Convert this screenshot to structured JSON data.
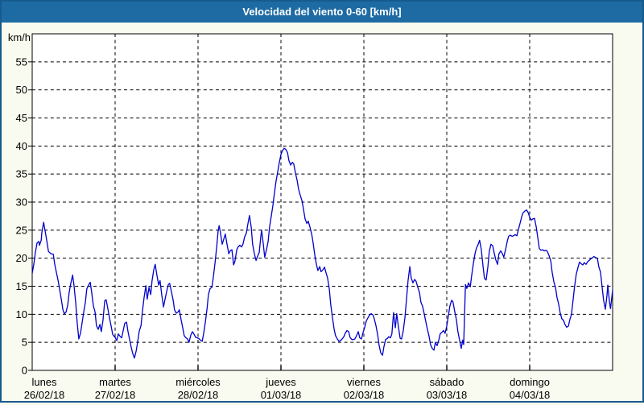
{
  "title_bar": {
    "text": "Velocidad del viento 0-60 [km/h]",
    "bg_color": "#1e6ba4",
    "text_color": "#ffffff",
    "frame_border_color": "#175a8d",
    "page_bg_color": "#fafbf0"
  },
  "chart_data": {
    "type": "line",
    "title": "Velocidad del viento 0-60 [km/h]",
    "ylabel": "km/h",
    "xlabel": "",
    "ylim": [
      0,
      60
    ],
    "x_hours_total": 168,
    "grid": "dashed",
    "legend": "none",
    "plot_bg_color": "#ffffff",
    "line_color": "#0000cc",
    "grid_color": "#000000",
    "y_ticks": [
      0,
      5,
      10,
      15,
      20,
      25,
      30,
      35,
      40,
      45,
      50,
      55
    ],
    "x_labels": [
      {
        "day": "lunes",
        "date": "26/02/18"
      },
      {
        "day": "martes",
        "date": "27/02/18"
      },
      {
        "day": "miércoles",
        "date": "28/02/18"
      },
      {
        "day": "jueves",
        "date": "01/03/18"
      },
      {
        "day": "viernes",
        "date": "02/03/18"
      },
      {
        "day": "sábado",
        "date": "03/03/18"
      },
      {
        "day": "domingo",
        "date": "04/03/18"
      }
    ],
    "points": [
      [
        0,
        17.3
      ],
      [
        0.5,
        19
      ],
      [
        0.9,
        21
      ],
      [
        1.4,
        22.7
      ],
      [
        1.9,
        23
      ],
      [
        2.1,
        22.3
      ],
      [
        2.6,
        23.2
      ],
      [
        2.8,
        24.6
      ],
      [
        3.3,
        26.4
      ],
      [
        3.7,
        25
      ],
      [
        4.2,
        23.2
      ],
      [
        4.7,
        21.2
      ],
      [
        5.4,
        20.8
      ],
      [
        6.1,
        20.7
      ],
      [
        6.5,
        19
      ],
      [
        7,
        17.5
      ],
      [
        7.5,
        16
      ],
      [
        7.9,
        14.6
      ],
      [
        8.4,
        12.7
      ],
      [
        8.9,
        10.8
      ],
      [
        9.3,
        10.1
      ],
      [
        9.8,
        10.4
      ],
      [
        10.3,
        11.7
      ],
      [
        10.7,
        13.9
      ],
      [
        11.2,
        15.6
      ],
      [
        11.7,
        17
      ],
      [
        12.1,
        15.2
      ],
      [
        12.6,
        12
      ],
      [
        13,
        8.6
      ],
      [
        13.5,
        5.6
      ],
      [
        14,
        6.7
      ],
      [
        14.4,
        8.3
      ],
      [
        14.9,
        10.3
      ],
      [
        15.4,
        12.2
      ],
      [
        15.8,
        14.5
      ],
      [
        16.3,
        15.2
      ],
      [
        16.8,
        15.7
      ],
      [
        17.2,
        14
      ],
      [
        17.7,
        11.5
      ],
      [
        18.2,
        10.4
      ],
      [
        18.6,
        8
      ],
      [
        19.1,
        7.3
      ],
      [
        19.6,
        8.2
      ],
      [
        20,
        6.9
      ],
      [
        20.5,
        9
      ],
      [
        21,
        12.4
      ],
      [
        21.4,
        12.6
      ],
      [
        21.9,
        11
      ],
      [
        22.4,
        9.3
      ],
      [
        22.8,
        8
      ],
      [
        23.3,
        6.4
      ],
      [
        23.8,
        6
      ],
      [
        24,
        5.9
      ],
      [
        24.5,
        5.3
      ],
      [
        24.9,
        6.5
      ],
      [
        25.4,
        6.1
      ],
      [
        25.9,
        5.8
      ],
      [
        26.3,
        7
      ],
      [
        26.8,
        8.4
      ],
      [
        27.3,
        8.6
      ],
      [
        27.7,
        7
      ],
      [
        28.2,
        5.5
      ],
      [
        28.7,
        4
      ],
      [
        29.1,
        3
      ],
      [
        29.6,
        2.2
      ],
      [
        30.1,
        3.5
      ],
      [
        30.5,
        5
      ],
      [
        31,
        7
      ],
      [
        31.5,
        8
      ],
      [
        31.9,
        10.5
      ],
      [
        32.4,
        13
      ],
      [
        32.9,
        15.1
      ],
      [
        33.3,
        12.7
      ],
      [
        33.8,
        14.8
      ],
      [
        34.3,
        13.5
      ],
      [
        34.7,
        16
      ],
      [
        35.2,
        18
      ],
      [
        35.6,
        18.9
      ],
      [
        36.1,
        17
      ],
      [
        36.6,
        15.2
      ],
      [
        37,
        16
      ],
      [
        37.5,
        13.5
      ],
      [
        38,
        11.3
      ],
      [
        38.4,
        12.5
      ],
      [
        38.9,
        14
      ],
      [
        39.4,
        15.3
      ],
      [
        39.8,
        15.5
      ],
      [
        40.3,
        14
      ],
      [
        40.8,
        12.5
      ],
      [
        41.2,
        10.8
      ],
      [
        41.7,
        10.2
      ],
      [
        42.2,
        10.4
      ],
      [
        42.6,
        10.8
      ],
      [
        43.1,
        9
      ],
      [
        43.6,
        7.5
      ],
      [
        44,
        6.2
      ],
      [
        44.5,
        5.8
      ],
      [
        45,
        5.6
      ],
      [
        45.4,
        5
      ],
      [
        45.9,
        6.3
      ],
      [
        46.4,
        6.9
      ],
      [
        46.8,
        6.5
      ],
      [
        47.3,
        5.9
      ],
      [
        47.8,
        5.8
      ],
      [
        48.2,
        5.7
      ],
      [
        48.7,
        5.4
      ],
      [
        49.2,
        5.2
      ],
      [
        49.6,
        6.5
      ],
      [
        50.1,
        8.5
      ],
      [
        50.6,
        11
      ],
      [
        51,
        13.5
      ],
      [
        51.5,
        14.6
      ],
      [
        52,
        14.8
      ],
      [
        52.4,
        16.5
      ],
      [
        52.9,
        19
      ],
      [
        53.4,
        22
      ],
      [
        53.8,
        24.8
      ],
      [
        54.1,
        25.8
      ],
      [
        54.5,
        24.5
      ],
      [
        55,
        22.5
      ],
      [
        55.5,
        23.5
      ],
      [
        55.9,
        24.3
      ],
      [
        56.4,
        22.5
      ],
      [
        56.9,
        20.8
      ],
      [
        57.3,
        21.3
      ],
      [
        57.8,
        21.5
      ],
      [
        58.3,
        18.8
      ],
      [
        58.7,
        19.5
      ],
      [
        59.2,
        21.5
      ],
      [
        59.6,
        22
      ],
      [
        60.1,
        22.3
      ],
      [
        60.6,
        22
      ],
      [
        61,
        22.5
      ],
      [
        61.5,
        23.8
      ],
      [
        62,
        24.5
      ],
      [
        62.4,
        26
      ],
      [
        62.9,
        27.6
      ],
      [
        63.4,
        25.5
      ],
      [
        63.8,
        22.5
      ],
      [
        64.3,
        20.8
      ],
      [
        64.8,
        19.6
      ],
      [
        65.2,
        20.3
      ],
      [
        65.7,
        21
      ],
      [
        66.2,
        24
      ],
      [
        66.4,
        25
      ],
      [
        66.9,
        22.5
      ],
      [
        67.3,
        20.2
      ],
      [
        67.8,
        21.5
      ],
      [
        68.3,
        23
      ],
      [
        68.7,
        25.5
      ],
      [
        69.2,
        27.5
      ],
      [
        69.7,
        29.5
      ],
      [
        70.1,
        31.5
      ],
      [
        70.6,
        33.8
      ],
      [
        71.1,
        35.5
      ],
      [
        71.5,
        37
      ],
      [
        72,
        38.5
      ],
      [
        72.5,
        39.2
      ],
      [
        72.9,
        39.6
      ],
      [
        73.4,
        39.4
      ],
      [
        73.9,
        38.8
      ],
      [
        74.3,
        37.4
      ],
      [
        74.8,
        36.6
      ],
      [
        75.3,
        37.1
      ],
      [
        75.7,
        36.8
      ],
      [
        76.2,
        35.2
      ],
      [
        76.7,
        33.8
      ],
      [
        77.1,
        32.3
      ],
      [
        77.6,
        31.2
      ],
      [
        78.1,
        30.2
      ],
      [
        78.5,
        28.8
      ],
      [
        79,
        27
      ],
      [
        79.5,
        26.2
      ],
      [
        79.9,
        26.6
      ],
      [
        80.4,
        25.5
      ],
      [
        80.9,
        24.3
      ],
      [
        81.3,
        22.8
      ],
      [
        81.8,
        20.5
      ],
      [
        82.3,
        18.8
      ],
      [
        82.7,
        17.8
      ],
      [
        83.2,
        18.5
      ],
      [
        83.6,
        17.6
      ],
      [
        84.1,
        17.9
      ],
      [
        84.6,
        18.4
      ],
      [
        85,
        17.5
      ],
      [
        85.5,
        16.5
      ],
      [
        86,
        14.5
      ],
      [
        86.4,
        11.8
      ],
      [
        86.9,
        9.5
      ],
      [
        87.4,
        7.3
      ],
      [
        87.8,
        6.2
      ],
      [
        88.3,
        5.6
      ],
      [
        88.8,
        5.2
      ],
      [
        89.2,
        5.3
      ],
      [
        89.7,
        5.6
      ],
      [
        90.2,
        6
      ],
      [
        90.6,
        6.6
      ],
      [
        91.1,
        7.1
      ],
      [
        91.6,
        6.9
      ],
      [
        92,
        5.9
      ],
      [
        92.5,
        5.5
      ],
      [
        93,
        5.5
      ],
      [
        93.4,
        5.6
      ],
      [
        93.9,
        6.2
      ],
      [
        94.4,
        6.9
      ],
      [
        94.8,
        5.8
      ],
      [
        95.3,
        5.6
      ],
      [
        95.8,
        6.8
      ],
      [
        96.2,
        7.6
      ],
      [
        96.7,
        8.8
      ],
      [
        97.2,
        9.4
      ],
      [
        97.6,
        9.8
      ],
      [
        98.1,
        10.1
      ],
      [
        98.6,
        9.9
      ],
      [
        99,
        9.2
      ],
      [
        99.5,
        8
      ],
      [
        100,
        6.3
      ],
      [
        100.4,
        4.5
      ],
      [
        100.9,
        3.1
      ],
      [
        101.4,
        2.7
      ],
      [
        101.8,
        4.2
      ],
      [
        102.3,
        5.5
      ],
      [
        102.8,
        5.7
      ],
      [
        103.2,
        6
      ],
      [
        103.7,
        5.8
      ],
      [
        104.1,
        6.5
      ],
      [
        104.6,
        10.3
      ],
      [
        105.1,
        7.6
      ],
      [
        105.5,
        10.1
      ],
      [
        106,
        7.8
      ],
      [
        106.5,
        5.7
      ],
      [
        106.9,
        5.6
      ],
      [
        107.4,
        7
      ],
      [
        107.9,
        9.5
      ],
      [
        108.3,
        12.4
      ],
      [
        108.8,
        16
      ],
      [
        109.3,
        18.5
      ],
      [
        109.7,
        16.5
      ],
      [
        110.2,
        15.6
      ],
      [
        110.7,
        16.2
      ],
      [
        111.1,
        15.9
      ],
      [
        111.6,
        14.8
      ],
      [
        112.1,
        13.9
      ],
      [
        112.5,
        12.2
      ],
      [
        113,
        11.4
      ],
      [
        113.5,
        10
      ],
      [
        113.9,
        8.8
      ],
      [
        114.4,
        7.3
      ],
      [
        114.9,
        6
      ],
      [
        115.3,
        4.6
      ],
      [
        115.8,
        3.9
      ],
      [
        116.3,
        3.6
      ],
      [
        116.7,
        5
      ],
      [
        117.2,
        4.4
      ],
      [
        117.7,
        5.4
      ],
      [
        118.1,
        6.5
      ],
      [
        118.6,
        6.8
      ],
      [
        119.1,
        7.1
      ],
      [
        119.5,
        6.6
      ],
      [
        120,
        7.9
      ],
      [
        120.4,
        9.5
      ],
      [
        120.9,
        11.5
      ],
      [
        121.4,
        12.5
      ],
      [
        121.8,
        12.2
      ],
      [
        122.3,
        10.5
      ],
      [
        122.8,
        9
      ],
      [
        123.2,
        7
      ],
      [
        123.7,
        5.4
      ],
      [
        124.2,
        3.9
      ],
      [
        124.6,
        5.4
      ],
      [
        124.9,
        4.6
      ],
      [
        125.1,
        9
      ],
      [
        125.4,
        15.3
      ],
      [
        125.8,
        14.6
      ],
      [
        126.3,
        15.6
      ],
      [
        126.8,
        14.9
      ],
      [
        127.2,
        16.9
      ],
      [
        127.7,
        19
      ],
      [
        128.2,
        20.9
      ],
      [
        128.6,
        21.8
      ],
      [
        129.1,
        22.5
      ],
      [
        129.5,
        23.2
      ],
      [
        130,
        21.5
      ],
      [
        130.5,
        18.5
      ],
      [
        130.9,
        16.4
      ],
      [
        131.4,
        16.1
      ],
      [
        131.9,
        18.5
      ],
      [
        132.3,
        21.2
      ],
      [
        132.8,
        22.5
      ],
      [
        133.3,
        22.2
      ],
      [
        133.7,
        21
      ],
      [
        134.2,
        19.7
      ],
      [
        134.7,
        18.9
      ],
      [
        135.1,
        20.8
      ],
      [
        135.6,
        21.3
      ],
      [
        136.1,
        20.8
      ],
      [
        136.5,
        20.2
      ],
      [
        137,
        21.5
      ],
      [
        137.5,
        23
      ],
      [
        137.9,
        23.9
      ],
      [
        138.4,
        24.1
      ],
      [
        138.9,
        23.9
      ],
      [
        139.3,
        24
      ],
      [
        139.8,
        24.2
      ],
      [
        140.3,
        24
      ],
      [
        140.7,
        25
      ],
      [
        141.2,
        26.2
      ],
      [
        141.7,
        27.4
      ],
      [
        142.1,
        28.1
      ],
      [
        142.6,
        28.4
      ],
      [
        143.1,
        28.6
      ],
      [
        143.5,
        28.2
      ],
      [
        144,
        27.3
      ],
      [
        144.5,
        26.8
      ],
      [
        144.9,
        27
      ],
      [
        145.4,
        27.1
      ],
      [
        145.9,
        25.5
      ],
      [
        146.3,
        23.8
      ],
      [
        146.8,
        21.7
      ],
      [
        147.3,
        21.4
      ],
      [
        147.7,
        21.5
      ],
      [
        148.2,
        21.3
      ],
      [
        148.7,
        21.4
      ],
      [
        149.1,
        21.2
      ],
      [
        149.6,
        20.5
      ],
      [
        150.1,
        19.5
      ],
      [
        150.5,
        17.5
      ],
      [
        151,
        15.8
      ],
      [
        151.5,
        14.7
      ],
      [
        151.9,
        13
      ],
      [
        152.4,
        11.8
      ],
      [
        152.8,
        10.3
      ],
      [
        153.3,
        9.2
      ],
      [
        153.8,
        8.9
      ],
      [
        154.2,
        8.2
      ],
      [
        154.7,
        7.7
      ],
      [
        155.2,
        7.9
      ],
      [
        155.6,
        9
      ],
      [
        156.1,
        10
      ],
      [
        156.6,
        12.8
      ],
      [
        157,
        15
      ],
      [
        157.5,
        17.2
      ],
      [
        158,
        18.4
      ],
      [
        158.4,
        19.3
      ],
      [
        158.9,
        19
      ],
      [
        159.4,
        18.8
      ],
      [
        159.8,
        19.2
      ],
      [
        160.3,
        18.9
      ],
      [
        160.8,
        19.4
      ],
      [
        161.2,
        19.6
      ],
      [
        161.7,
        19.9
      ],
      [
        162.2,
        20.1
      ],
      [
        162.6,
        20.3
      ],
      [
        163.1,
        20.1
      ],
      [
        163.6,
        20
      ],
      [
        164,
        18.5
      ],
      [
        164.5,
        17.5
      ],
      [
        165,
        14.7
      ],
      [
        165.4,
        12.5
      ],
      [
        165.9,
        10.9
      ],
      [
        166.4,
        13.5
      ],
      [
        166.6,
        15.2
      ],
      [
        167.1,
        12.2
      ],
      [
        167.4,
        11
      ],
      [
        168,
        14.3
      ]
    ]
  }
}
